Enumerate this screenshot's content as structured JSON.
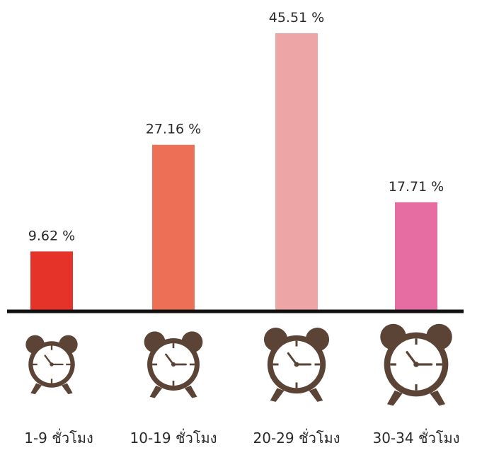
{
  "chart_data": {
    "type": "bar",
    "categories": [
      "1-9 ชั่วโมง",
      "10-19 ชั่วโมง",
      "20-29 ชั่วโมง",
      "30-34 ชั่วโมง"
    ],
    "values": [
      9.62,
      27.16,
      45.51,
      17.71
    ],
    "value_labels": [
      "9.62 %",
      "27.16 %",
      "45.51 %",
      "17.71 %"
    ],
    "bar_colors": [
      "#e5332a",
      "#ec6f56",
      "#eea5a5",
      "#e66da2"
    ],
    "ylim": [
      0,
      50
    ],
    "grid": false,
    "legend": "none"
  },
  "icons": [
    "alarm-clock-icon",
    "alarm-clock-icon",
    "alarm-clock-icon",
    "alarm-clock-icon"
  ],
  "colors": {
    "baseline": "#111111",
    "clock": "#5b4336",
    "clock_face": "#ffffff"
  }
}
